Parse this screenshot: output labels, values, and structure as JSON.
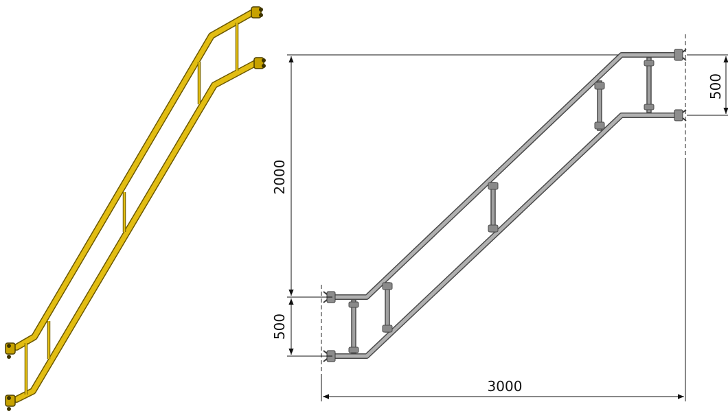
{
  "colors": {
    "yellow_rail": "#d8b300",
    "yellow_dark": "#8a7200",
    "grey_rail": "#a9a9a9",
    "grey_dark": "#555555",
    "dim_color": "#111111"
  },
  "dimensions": {
    "height_total": "2000",
    "top_spacing": "500",
    "bottom_spacing": "500",
    "width_total": "3000"
  }
}
